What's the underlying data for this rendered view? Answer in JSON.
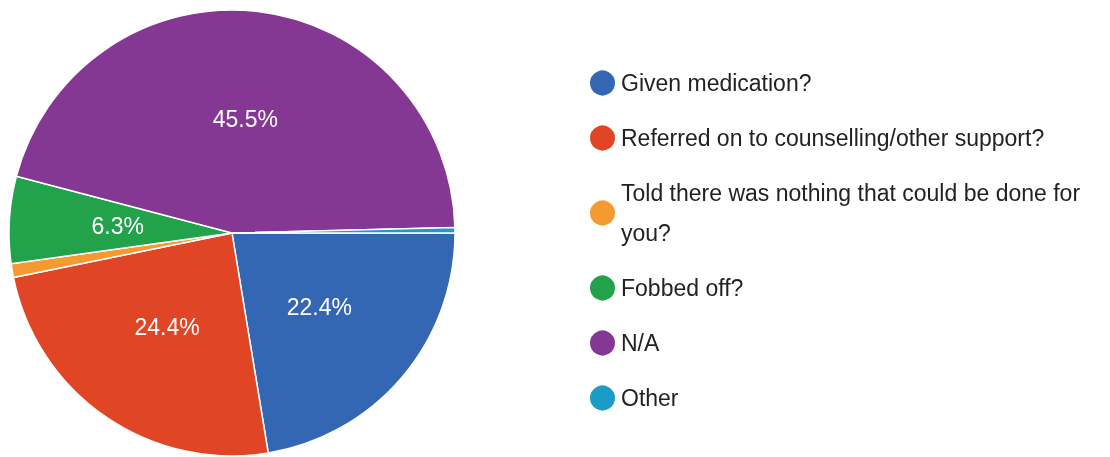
{
  "chart_data": {
    "type": "pie",
    "categories": [
      "Given medication?",
      "Referred on to counselling/other support?",
      "Told there was nothing that could be done for you?",
      "Fobbed off?",
      "N/A",
      "Other"
    ],
    "values": [
      22.4,
      24.4,
      1.0,
      6.3,
      45.5,
      0.4
    ],
    "colors": [
      "#3366b3",
      "#e04525",
      "#f59a30",
      "#22a24a",
      "#853893",
      "#1b9cc6"
    ],
    "value_labels": [
      "22.4%",
      "24.4%",
      null,
      "6.3%",
      "45.5%",
      null
    ],
    "legend": "right"
  }
}
